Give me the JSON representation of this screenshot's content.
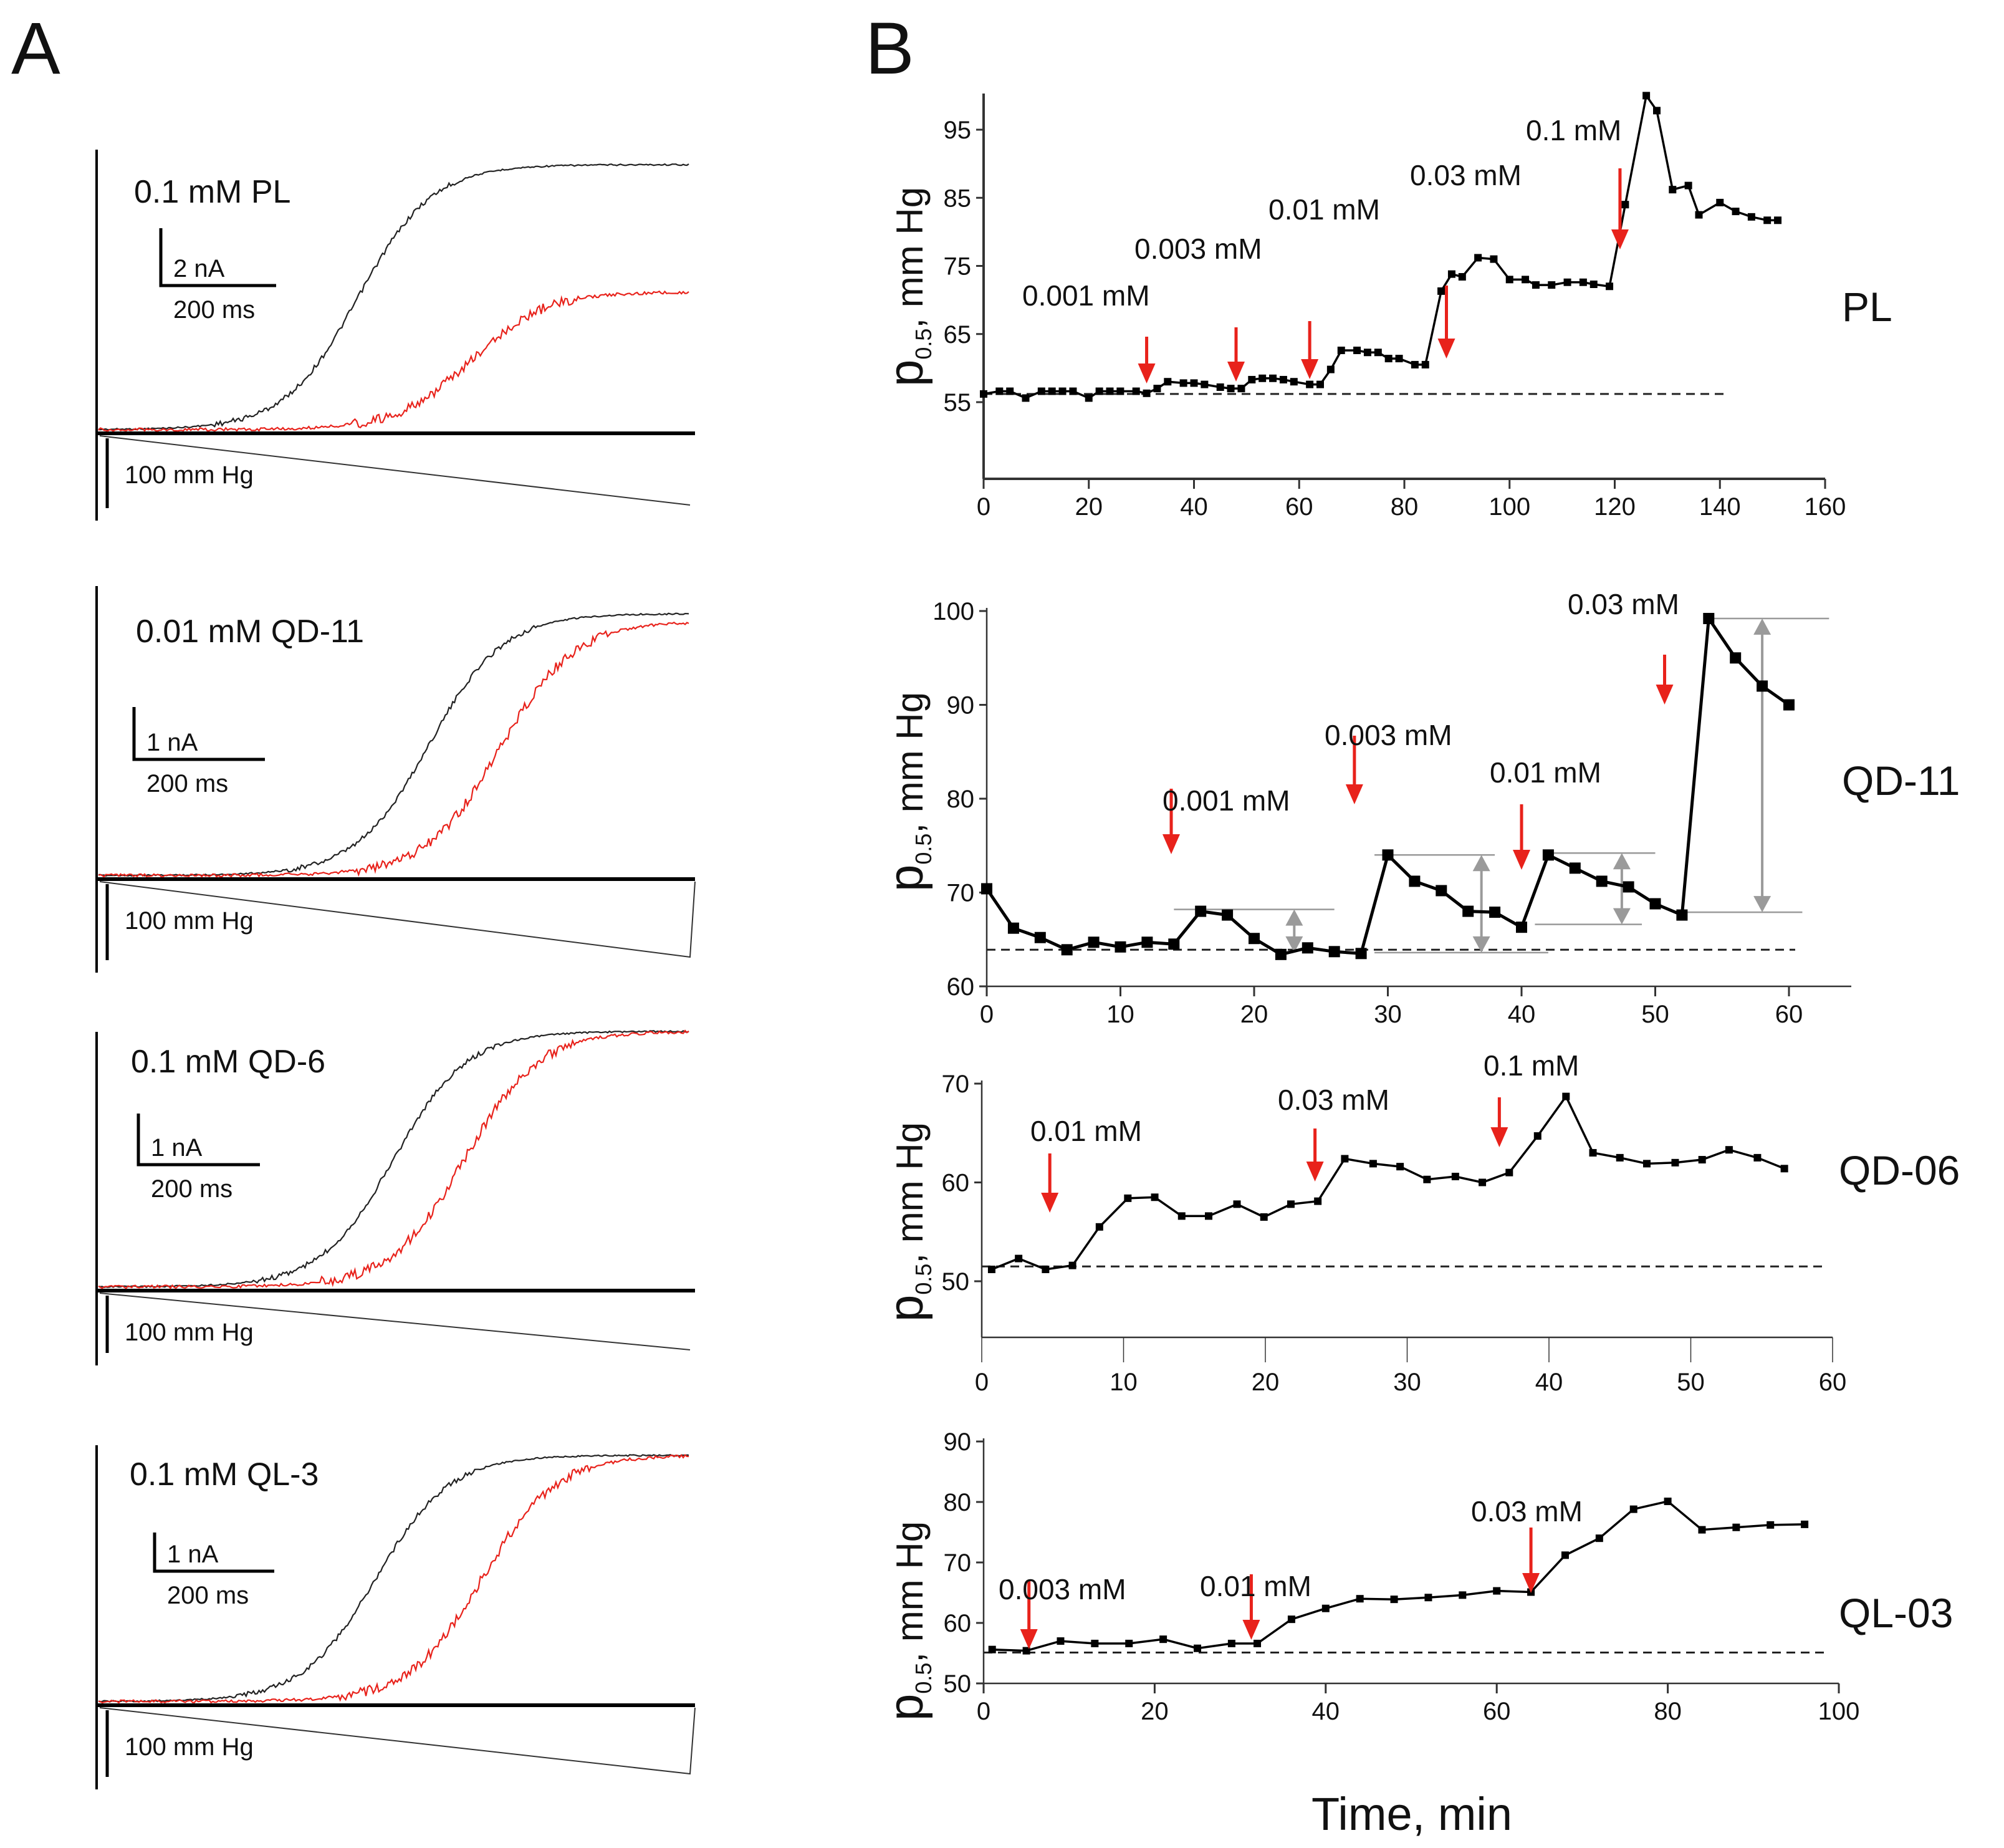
{
  "panel_labels": {
    "a": "A",
    "b": "B"
  },
  "panel_a": {
    "traces": [
      {
        "label": "0.1 mM PL",
        "current_scale": "2 nA",
        "time_scale": "200 ms",
        "pressure_scale": "100 mm Hg",
        "control_onset": 0.34,
        "drug_onset": 0.53,
        "drug_amplitude": 0.52,
        "pressure_return": false
      },
      {
        "label": "0.01 mM  QD-11",
        "current_scale": "1 nA",
        "time_scale": "200 ms",
        "pressure_scale": "100 mm Hg",
        "control_onset": 0.46,
        "drug_onset": 0.58,
        "drug_amplitude": 0.97,
        "pressure_return": true
      },
      {
        "label": "0.1 mM QD-6",
        "current_scale": "1 nA",
        "time_scale": "200 ms",
        "pressure_scale": "100 mm Hg",
        "control_onset": 0.4,
        "drug_onset": 0.52,
        "drug_amplitude": 1.0,
        "pressure_return": false
      },
      {
        "label": "0.1 mM QL-3",
        "current_scale": "1 nA",
        "time_scale": "200 ms",
        "pressure_scale": "100 mm Hg",
        "control_onset": 0.37,
        "drug_onset": 0.55,
        "drug_amplitude": 1.0,
        "pressure_return": true
      }
    ],
    "colors": {
      "control": "#222222",
      "drug": "#e8221b"
    }
  },
  "chart_data": [
    {
      "type": "line",
      "name": "PL",
      "ylabel": "p0.5, mm Hg",
      "ylabel_main": "p",
      "ylabel_sub": "0.5",
      "ylabel_rest": ", mm Hg",
      "xlim": [
        0,
        160
      ],
      "ylim": [
        45,
        100
      ],
      "yticks": [
        55,
        65,
        75,
        85,
        95
      ],
      "xticks": [
        0,
        20,
        40,
        60,
        80,
        100,
        120,
        140,
        160
      ],
      "baseline": 56.2,
      "x": [
        0,
        3,
        5,
        8,
        11,
        13,
        15,
        17,
        20,
        22,
        24,
        26,
        29,
        31,
        33,
        35,
        38,
        40,
        42,
        45,
        47,
        49,
        51,
        53,
        55,
        57,
        59,
        62,
        64,
        66,
        68,
        71,
        73,
        75,
        77,
        79,
        82,
        84,
        87,
        89,
        91,
        94,
        97,
        100,
        103,
        105,
        108,
        111,
        114,
        116,
        119,
        122,
        126,
        128,
        131,
        134,
        136,
        140,
        143,
        146,
        149,
        151
      ],
      "y": [
        56.2,
        56.6,
        56.6,
        55.6,
        56.6,
        56.6,
        56.6,
        56.6,
        55.6,
        56.6,
        56.6,
        56.6,
        56.6,
        56.3,
        57.0,
        58.0,
        57.8,
        57.8,
        57.6,
        57.2,
        57.0,
        57.0,
        58.3,
        58.5,
        58.5,
        58.3,
        58.0,
        57.6,
        57.6,
        59.8,
        62.6,
        62.6,
        62.3,
        62.3,
        61.4,
        61.4,
        60.5,
        60.5,
        71.3,
        73.8,
        73.4,
        76.2,
        76.0,
        73.0,
        73.0,
        72.2,
        72.2,
        72.6,
        72.6,
        72.3,
        72.0,
        84.0,
        100.0,
        97.8,
        86.2,
        86.8,
        82.5,
        84.3,
        83.0,
        82.2,
        81.7,
        81.7
      ],
      "annotations": [
        {
          "text": "0.001 mM",
          "arrow_x": 31
        },
        {
          "text": "0.003 mM",
          "arrow_x": 48
        },
        {
          "text": "0.01 mM",
          "arrow_x": 62
        },
        {
          "text": "0.03 mM",
          "arrow_x": 88
        },
        {
          "text": "0.1 mM",
          "arrow_x": 121
        }
      ]
    },
    {
      "type": "line",
      "name": "QD-11",
      "ylabel": "p0.5, mm Hg",
      "ylabel_main": "p",
      "ylabel_sub": "0.5",
      "ylabel_rest": ", mm Hg",
      "xlim": [
        0,
        65
      ],
      "ylim": [
        60,
        100
      ],
      "yticks": [
        60,
        70,
        80,
        90,
        100
      ],
      "xticks": [
        0,
        10,
        20,
        30,
        40,
        50,
        60
      ],
      "baseline": 63.9,
      "x": [
        0,
        2,
        4,
        6,
        8,
        10,
        12,
        14,
        16,
        18,
        20,
        22,
        24,
        26,
        28,
        30,
        32,
        34,
        36,
        38,
        40,
        42,
        44,
        46,
        48,
        50,
        52,
        54,
        56,
        58,
        60
      ],
      "y": [
        70.4,
        66.2,
        65.2,
        63.9,
        64.7,
        64.2,
        64.7,
        64.5,
        68.0,
        67.6,
        65.1,
        63.4,
        64.1,
        63.7,
        63.5,
        74.0,
        71.2,
        70.2,
        68.0,
        67.9,
        66.3,
        74.0,
        72.6,
        71.2,
        70.6,
        68.8,
        67.6,
        99.2,
        95.0,
        92.0,
        90.0
      ],
      "reference_lines": [
        {
          "y": 68.2,
          "x_from": 14,
          "x_to": 26
        },
        {
          "y": 74.0,
          "x_from": 29,
          "x_to": 38
        },
        {
          "y": 63.6,
          "x_from": 29,
          "x_to": 42
        },
        {
          "y": 74.2,
          "x_from": 42,
          "x_to": 50
        },
        {
          "y": 66.6,
          "x_from": 41,
          "x_to": 49
        },
        {
          "y": 99.2,
          "x_from": 54,
          "x_to": 63
        },
        {
          "y": 67.9,
          "x_from": 52,
          "x_to": 61
        }
      ],
      "range_arrows": [
        {
          "x": 23,
          "y_from": 63.6,
          "y_to": 68.2
        },
        {
          "x": 37,
          "y_from": 63.6,
          "y_to": 74.0
        },
        {
          "x": 47.5,
          "y_from": 66.6,
          "y_to": 74.2
        },
        {
          "x": 58,
          "y_from": 67.9,
          "y_to": 99.2
        }
      ],
      "annotations": [
        {
          "text": "0.001 mM",
          "arrow_x": 13.8
        },
        {
          "text": "0.003 mM",
          "arrow_x": 27.5
        },
        {
          "text": "0.01 mM",
          "arrow_x": 40
        },
        {
          "text": "0.03 mM",
          "arrow_x": 50.7
        }
      ]
    },
    {
      "type": "line",
      "name": "QD-06",
      "ylabel": "p0.5, mm Hg",
      "ylabel_main": "p",
      "ylabel_sub": "0.5",
      "ylabel_rest": ", mm Hg",
      "xlim": [
        0,
        60
      ],
      "ylim": [
        45,
        70
      ],
      "yticks": [
        50,
        60,
        70
      ],
      "xticks": [
        0,
        10,
        20,
        30,
        40,
        50,
        60
      ],
      "baseline": 51.5,
      "x": [
        0.7,
        2.6,
        4.5,
        6.4,
        8.3,
        10.3,
        12.2,
        14.1,
        16.0,
        18.0,
        19.9,
        21.8,
        23.7,
        25.6,
        27.6,
        29.5,
        31.4,
        33.4,
        35.3,
        37.2,
        39.2,
        41.2,
        43.1,
        45.0,
        46.9,
        48.9,
        50.8,
        52.7,
        54.7,
        56.6
      ],
      "y": [
        51.2,
        52.3,
        51.2,
        51.6,
        55.5,
        58.4,
        58.5,
        56.6,
        56.6,
        57.8,
        56.5,
        57.8,
        58.1,
        62.4,
        61.9,
        61.6,
        60.3,
        60.6,
        60.0,
        61.0,
        64.7,
        68.7,
        63.0,
        62.5,
        61.9,
        62.0,
        62.3,
        63.3,
        62.5,
        61.4
      ],
      "annotations": [
        {
          "text": "0.01 mM",
          "arrow_x": 4.8
        },
        {
          "text": "0.03 mM",
          "arrow_x": 23.5
        },
        {
          "text": "0.1 mM",
          "arrow_x": 36.5
        }
      ]
    },
    {
      "type": "line",
      "name": "QL-03",
      "ylabel": "p0.5, mm Hg",
      "ylabel_main": "p",
      "ylabel_sub": "0.5",
      "ylabel_rest": ", mm Hg",
      "xlabel": "Time, min",
      "xlim": [
        0,
        100
      ],
      "ylim": [
        50,
        90
      ],
      "yticks": [
        50,
        60,
        70,
        80,
        90
      ],
      "xticks": [
        0,
        20,
        40,
        60,
        80,
        100
      ],
      "baseline": 55.1,
      "x": [
        1,
        5,
        9,
        13,
        17,
        21,
        25,
        29,
        32,
        36,
        40,
        44,
        48,
        52,
        56,
        60,
        64,
        68,
        72,
        76,
        80,
        84,
        88,
        92,
        96
      ],
      "y": [
        55.6,
        55.4,
        57.0,
        56.6,
        56.6,
        57.3,
        55.8,
        56.6,
        56.6,
        60.6,
        62.4,
        64.0,
        63.9,
        64.2,
        64.6,
        65.3,
        65.1,
        71.2,
        74.0,
        78.8,
        80.1,
        75.4,
        75.8,
        76.2,
        76.3
      ],
      "annotations": [
        {
          "text": "0.003 mM",
          "arrow_x": 5.3
        },
        {
          "text": "0.01 mM",
          "arrow_x": 31.3
        },
        {
          "text": "0.03 mM",
          "arrow_x": 64
        }
      ]
    }
  ]
}
